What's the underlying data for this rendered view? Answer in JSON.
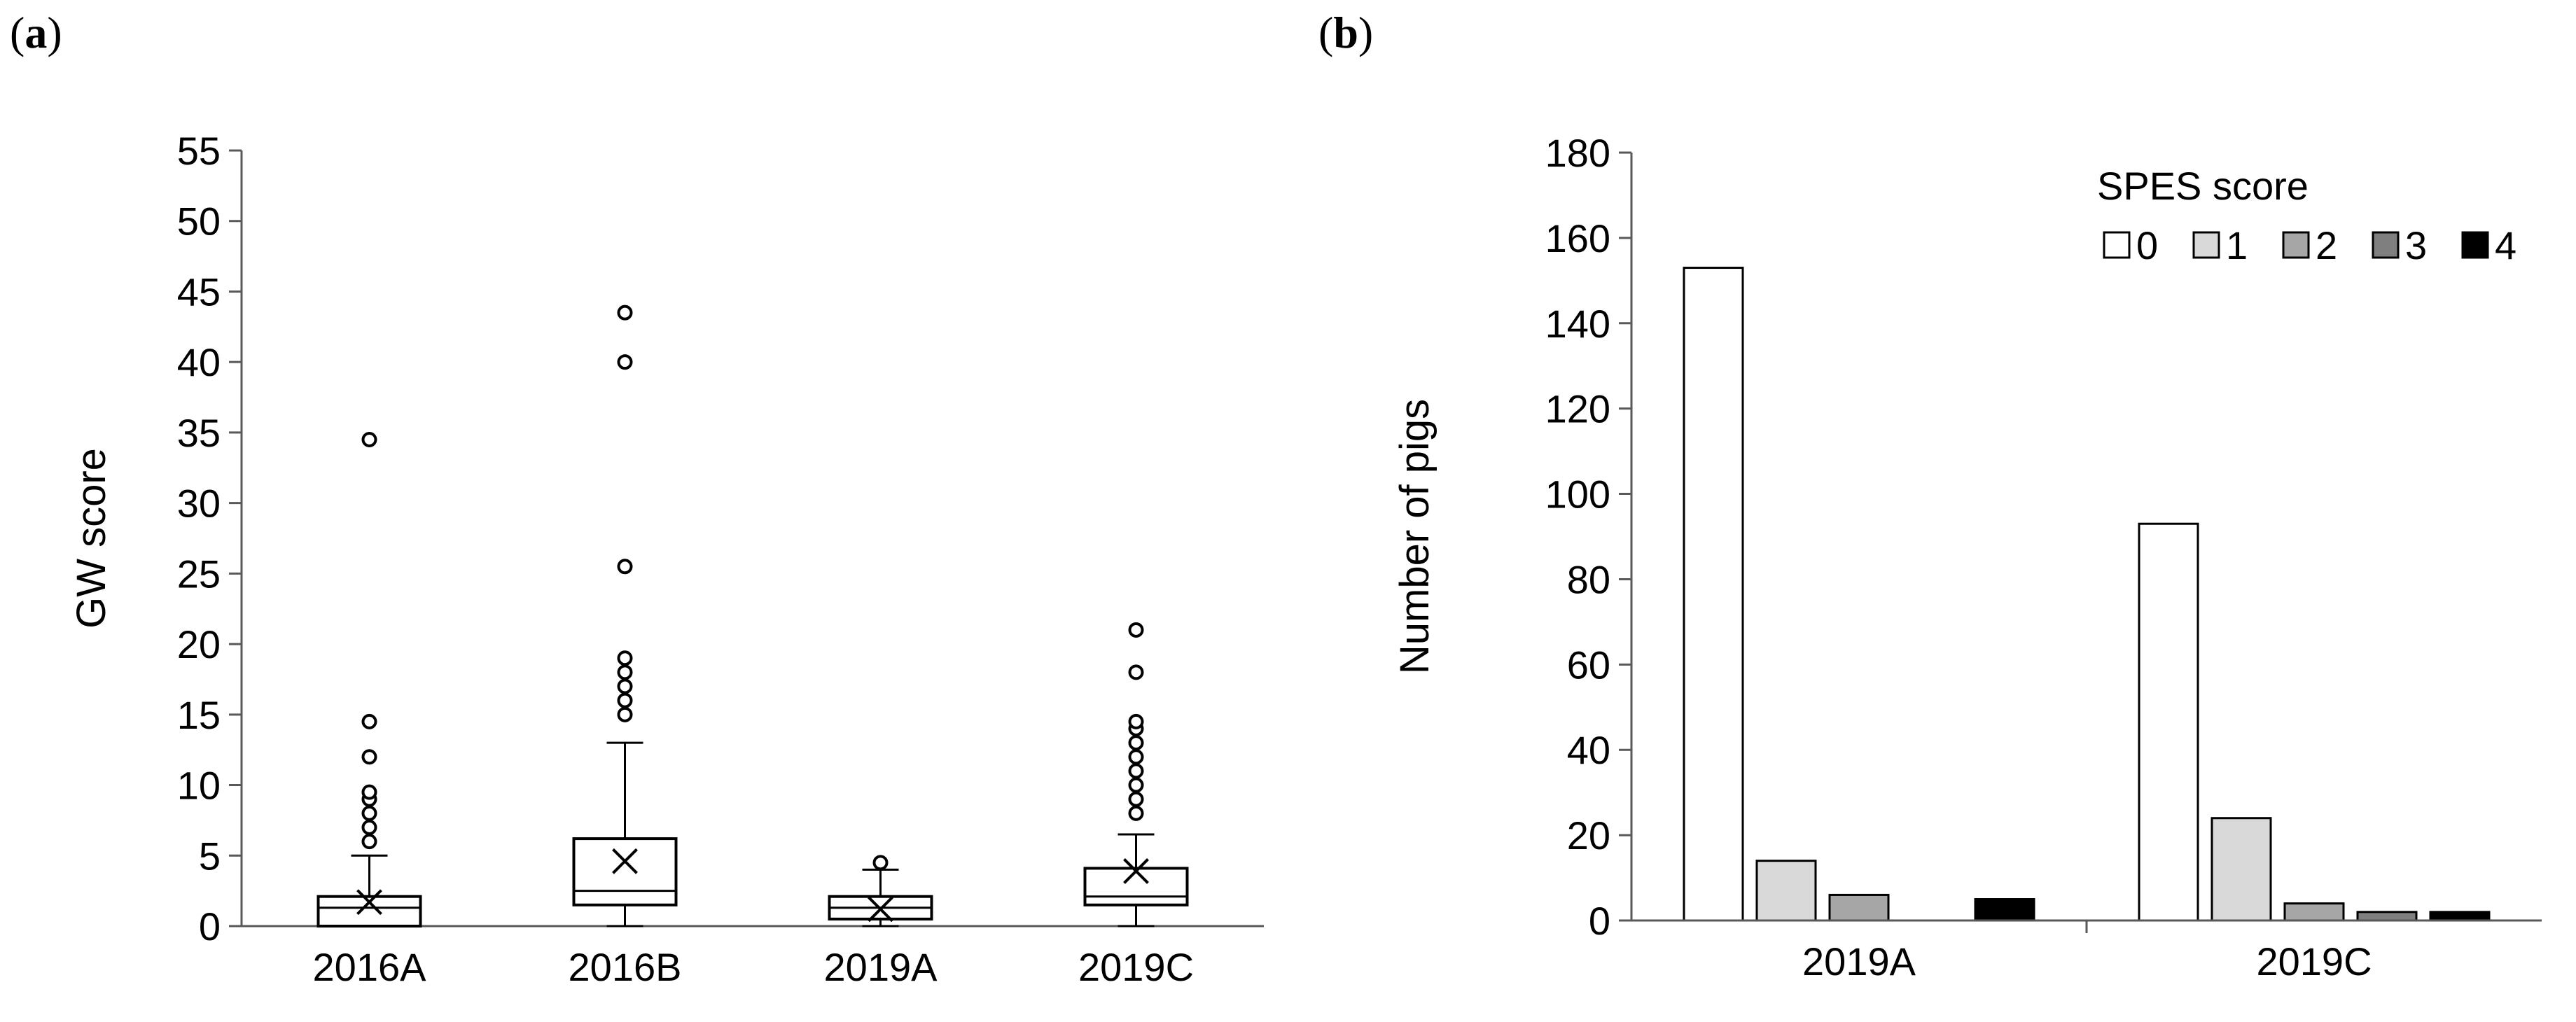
{
  "panels": {
    "a": {
      "open": "(",
      "letter": "a",
      "close": ")"
    },
    "b": {
      "open": "(",
      "letter": "b",
      "close": ")"
    }
  },
  "chart_data": [
    {
      "type": "box",
      "panel": "a",
      "title": "",
      "xlabel": "",
      "ylabel": "GW score",
      "ylim": [
        0,
        55
      ],
      "yticks": [
        0,
        5,
        10,
        15,
        20,
        25,
        30,
        35,
        40,
        45,
        50,
        55
      ],
      "categories": [
        "2016A",
        "2016B",
        "2019A",
        "2019C"
      ],
      "boxes": [
        {
          "name": "2016A",
          "whisker_low": 0,
          "q1": 0,
          "median": 1.3,
          "q3": 2.1,
          "whisker_high": 5,
          "mean": 1.7,
          "outliers": [
            6,
            7,
            8,
            9,
            9.5,
            12,
            14.5,
            34.5
          ]
        },
        {
          "name": "2016B",
          "whisker_low": 0,
          "q1": 1.5,
          "median": 2.5,
          "q3": 6.2,
          "whisker_high": 13,
          "mean": 4.6,
          "outliers": [
            15,
            16,
            17,
            18,
            19,
            25.5,
            40,
            43.5
          ]
        },
        {
          "name": "2019A",
          "whisker_low": 0,
          "q1": 0.5,
          "median": 1.3,
          "q3": 2.1,
          "whisker_high": 4,
          "mean": 1.2,
          "outliers": [
            4.5
          ]
        },
        {
          "name": "2019C",
          "whisker_low": 0,
          "q1": 1.5,
          "median": 2.1,
          "q3": 4.1,
          "whisker_high": 6.5,
          "mean": 3.9,
          "outliers": [
            8,
            9,
            10,
            11,
            12,
            13,
            14,
            14.5,
            18,
            21
          ]
        }
      ],
      "colors": {
        "box_fill": "#ffffff",
        "line": "#000000",
        "axis": "#595959"
      }
    },
    {
      "type": "bar",
      "panel": "b",
      "title": "",
      "xlabel": "",
      "ylabel": "Number of pigs",
      "ylim": [
        0,
        180
      ],
      "yticks": [
        0,
        20,
        40,
        60,
        80,
        100,
        120,
        140,
        160,
        180
      ],
      "categories": [
        "2019A",
        "2019C"
      ],
      "legend_title": "SPES score",
      "legend_position": "top-right",
      "series": [
        {
          "name": "0",
          "color": "#ffffff",
          "values": [
            153,
            93
          ]
        },
        {
          "name": "1",
          "color": "#d9d9d9",
          "values": [
            14,
            24
          ]
        },
        {
          "name": "2",
          "color": "#a6a6a6",
          "values": [
            6,
            4
          ]
        },
        {
          "name": "3",
          "color": "#7f7f7f",
          "values": [
            0,
            2
          ]
        },
        {
          "name": "4",
          "color": "#000000",
          "values": [
            5,
            2
          ]
        }
      ],
      "colors": {
        "axis": "#595959",
        "edge": "#000000"
      }
    }
  ]
}
